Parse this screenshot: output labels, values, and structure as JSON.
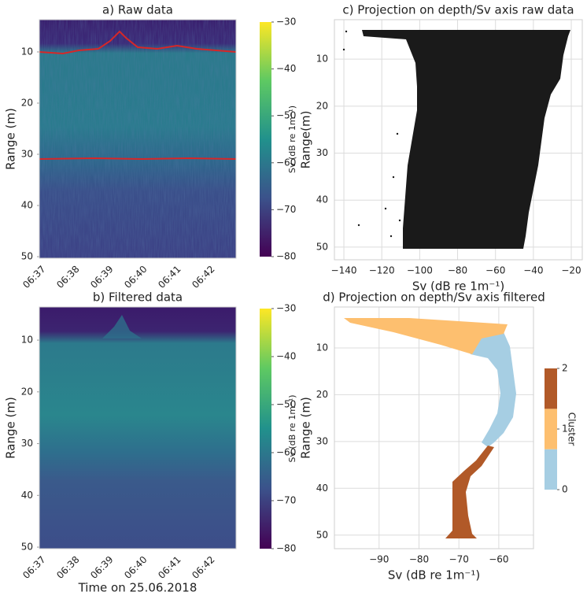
{
  "chart_data": [
    {
      "type": "heatmap",
      "title": "a) Raw data",
      "ylabel": "Range (m)",
      "categories": [
        "06:37",
        "06:38",
        "06:39",
        "06:40",
        "06:41",
        "06:42"
      ],
      "ylim": [
        50.3,
        3.7
      ],
      "yticks": [
        10,
        20,
        30,
        40,
        50
      ],
      "colorbar": {
        "label": "Sv (dB re 1m⁻¹)",
        "cmap": "viridis",
        "clim": [
          -80,
          -30
        ],
        "ticks": [
          {
            "value": -80,
            "label": "−80"
          },
          {
            "value": -70,
            "label": "−70"
          },
          {
            "value": -60,
            "label": "−60"
          },
          {
            "value": -50,
            "label": "−50"
          },
          {
            "value": -40,
            "label": "−40"
          },
          {
            "value": -30,
            "label": "−30"
          }
        ]
      }
    },
    {
      "type": "heatmap",
      "title": "b) Filtered data",
      "ylabel": "Range (m)",
      "xlabel": "Time on 25.06.2018",
      "categories": [
        "06:37",
        "06:38",
        "06:39",
        "06:40",
        "06:41",
        "06:42"
      ],
      "ylim": [
        50.3,
        3.6
      ],
      "yticks": [
        10,
        20,
        30,
        40,
        50
      ],
      "colorbar": {
        "label": "Sv (dB re 1m⁻¹)",
        "cmap": "viridis",
        "clim": [
          -80,
          -30
        ],
        "ticks": [
          {
            "value": -80,
            "label": "−80"
          },
          {
            "value": -70,
            "label": "−70"
          },
          {
            "value": -60,
            "label": "−60"
          },
          {
            "value": -50,
            "label": "−50"
          },
          {
            "value": -40,
            "label": "−40"
          },
          {
            "value": -30,
            "label": "−30"
          }
        ]
      }
    },
    {
      "type": "scatter",
      "title": "c) Projection on depth/Sv axis raw data",
      "xlabel": "Sv (dB re 1m⁻¹)",
      "ylabel": "Range(m)",
      "xlim": [
        -145,
        -14.2
      ],
      "xticks": [
        {
          "value": -140,
          "label": "−140"
        },
        {
          "value": -120,
          "label": "−120"
        },
        {
          "value": -100,
          "label": "−100"
        },
        {
          "value": -80,
          "label": "−80"
        },
        {
          "value": -60,
          "label": "−60"
        },
        {
          "value": -40,
          "label": "−40"
        },
        {
          "value": -20,
          "label": "−20"
        }
      ],
      "ylim": [
        52.7,
        1.6
      ],
      "yticks": [
        10,
        20,
        30,
        40,
        50
      ],
      "grid": true,
      "color": "#1a1a1a"
    },
    {
      "type": "scatter",
      "title": "d) Projection on depth/Sv axis filtered",
      "xlabel": "Sv (dB re 1m⁻¹)",
      "ylabel": "Range (m)",
      "xlim": [
        -101.2,
        -51.3
      ],
      "xticks": [
        {
          "value": -90,
          "label": "−90"
        },
        {
          "value": -80,
          "label": "−80"
        },
        {
          "value": -70,
          "label": "−70"
        },
        {
          "value": -60,
          "label": "−60"
        }
      ],
      "ylim": [
        52.9,
        1.26
      ],
      "yticks": [
        10,
        20,
        30,
        40,
        50
      ],
      "grid": true,
      "colorbar": {
        "label": "Cluster",
        "clim": [
          0,
          2
        ],
        "ticks": [
          0,
          1,
          2
        ],
        "colors": [
          "#a6cee3",
          "#fdbf6f",
          "#b15928"
        ]
      }
    }
  ]
}
